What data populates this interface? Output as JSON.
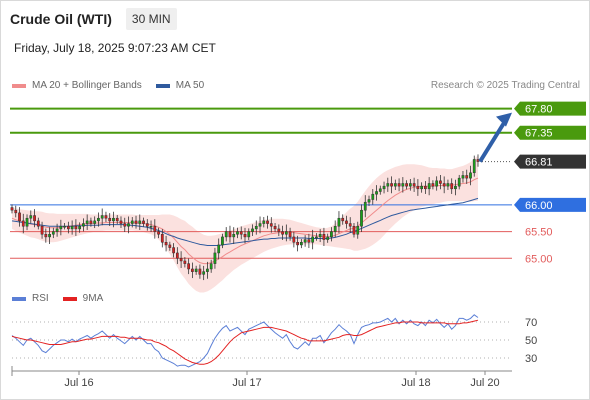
{
  "header": {
    "title": "Crude Oil (WTI)",
    "interval": "30 MIN"
  },
  "timestamp": "Friday, July 18, 2025 9:07:23 AM CET",
  "legend": {
    "ma20_label": "MA 20 + Bollinger Bands",
    "ma50_label": "MA 50",
    "ma20_color": "#f08c8c",
    "ma50_color": "#2f5a9e"
  },
  "source": "Research © 2025 Trading Central",
  "rsi_legend": {
    "rsi_label": "RSI",
    "rsi_color": "#5b7fd6",
    "ma_label": "9MA",
    "ma_color": "#e32222"
  },
  "colors": {
    "up": "#18a018",
    "down": "#d62020",
    "resistance": "#4a9a0e",
    "current": "#333333",
    "pivot": "#2f6fe0",
    "support": "#e25c5c",
    "arrow": "#2f5fa8",
    "band_fill": "#fbe1df"
  },
  "chart_data": [
    {
      "type": "candlestick",
      "instrument": "Crude Oil (WTI)",
      "timeframe": "30 MIN",
      "x_ticks": [
        "Jul 16",
        "Jul 17",
        "Jul 18",
        "Jul 20"
      ],
      "y_range": [
        64.5,
        68.0
      ],
      "levels": [
        {
          "label": "67.80",
          "value": 67.8,
          "kind": "resistance"
        },
        {
          "label": "67.35",
          "value": 67.35,
          "kind": "resistance"
        },
        {
          "label": "66.81",
          "value": 66.81,
          "kind": "current"
        },
        {
          "label": "66.00",
          "value": 66.0,
          "kind": "pivot"
        },
        {
          "label": "65.50",
          "value": 65.5,
          "kind": "support"
        },
        {
          "label": "65.00",
          "value": 65.0,
          "kind": "support"
        }
      ],
      "close": [
        65.9,
        65.85,
        65.7,
        65.6,
        65.75,
        65.8,
        65.7,
        65.6,
        65.45,
        65.4,
        65.45,
        65.5,
        65.55,
        65.6,
        65.6,
        65.55,
        65.6,
        65.55,
        65.6,
        65.65,
        65.7,
        65.65,
        65.7,
        65.75,
        65.8,
        65.75,
        65.7,
        65.75,
        65.7,
        65.65,
        65.6,
        65.65,
        65.7,
        65.65,
        65.7,
        65.65,
        65.6,
        65.6,
        65.5,
        65.45,
        65.3,
        65.25,
        65.2,
        65.1,
        65.0,
        64.95,
        64.9,
        64.8,
        64.75,
        64.8,
        64.7,
        64.75,
        64.8,
        64.9,
        65.1,
        65.25,
        65.4,
        65.5,
        65.4,
        65.45,
        65.5,
        65.45,
        65.4,
        65.5,
        65.55,
        65.6,
        65.65,
        65.7,
        65.65,
        65.6,
        65.55,
        65.5,
        65.45,
        65.5,
        65.4,
        65.3,
        65.25,
        65.3,
        65.35,
        65.3,
        65.4,
        65.4,
        65.45,
        65.35,
        65.4,
        65.5,
        65.6,
        65.75,
        65.7,
        65.65,
        65.6,
        65.45,
        65.6,
        65.9,
        66.05,
        66.1,
        66.2,
        66.25,
        66.3,
        66.35,
        66.4,
        66.35,
        66.4,
        66.35,
        66.4,
        66.35,
        66.4,
        66.35,
        66.3,
        66.35,
        66.3,
        66.4,
        66.35,
        66.45,
        66.4,
        66.35,
        66.4,
        66.3,
        66.35,
        66.5,
        66.55,
        66.5,
        66.6,
        66.85,
        66.81
      ],
      "ma20": [
        65.75,
        65.72,
        65.7,
        65.68,
        65.66,
        65.64,
        65.63,
        65.62,
        65.6,
        65.58,
        65.57,
        65.57,
        65.57,
        65.58,
        65.59,
        65.6,
        65.61,
        65.62,
        65.63,
        65.64,
        65.65,
        65.65,
        65.66,
        65.66,
        65.66,
        65.67,
        65.67,
        65.67,
        65.67,
        65.67,
        65.67,
        65.67,
        65.67,
        65.66,
        65.66,
        65.65,
        65.64,
        65.63,
        65.61,
        65.58,
        65.55,
        65.5,
        65.45,
        65.38,
        65.3,
        65.22,
        65.16,
        65.08,
        65.02,
        64.96,
        64.92,
        64.9,
        64.9,
        64.92,
        64.95,
        64.99,
        65.03,
        65.08,
        65.12,
        65.16,
        65.2,
        65.24,
        65.27,
        65.3,
        65.33,
        65.36,
        65.39,
        65.42,
        65.44,
        65.46,
        65.47,
        65.48,
        65.49,
        65.49,
        65.49,
        65.48,
        65.47,
        65.46,
        65.45,
        65.44,
        65.43,
        65.42,
        65.41,
        65.4,
        65.4,
        65.41,
        65.43,
        65.46,
        65.49,
        65.52,
        65.55,
        65.56,
        65.6,
        65.66,
        65.72,
        65.78,
        65.84,
        65.9,
        65.96,
        66.02,
        66.08,
        66.13,
        66.18,
        66.22,
        66.26,
        66.29,
        66.31,
        66.33,
        66.34,
        66.35,
        66.35,
        66.35,
        66.35,
        66.36,
        66.36,
        66.37,
        66.37,
        66.37,
        66.38,
        66.39,
        66.4,
        66.41,
        66.43,
        66.47,
        66.5
      ],
      "ma50": [
        65.7,
        65.69,
        65.68,
        65.67,
        65.66,
        65.65,
        65.64,
        65.63,
        65.62,
        65.61,
        65.6,
        65.6,
        65.6,
        65.6,
        65.6,
        65.6,
        65.6,
        65.61,
        65.61,
        65.61,
        65.62,
        65.62,
        65.62,
        65.62,
        65.63,
        65.63,
        65.63,
        65.63,
        65.63,
        65.63,
        65.63,
        65.62,
        65.62,
        65.61,
        65.6,
        65.59,
        65.58,
        65.56,
        65.54,
        65.52,
        65.49,
        65.46,
        65.43,
        65.41,
        65.38,
        65.36,
        65.34,
        65.32,
        65.3,
        65.28,
        65.26,
        65.25,
        65.24,
        65.24,
        65.24,
        65.24,
        65.25,
        65.26,
        65.27,
        65.28,
        65.29,
        65.3,
        65.31,
        65.32,
        65.33,
        65.34,
        65.35,
        65.36,
        65.36,
        65.37,
        65.37,
        65.38,
        65.38,
        65.38,
        65.38,
        65.38,
        65.38,
        65.38,
        65.38,
        65.37,
        65.37,
        65.37,
        65.37,
        65.37,
        65.37,
        65.38,
        65.39,
        65.41,
        65.43,
        65.45,
        65.48,
        65.5,
        65.53,
        65.56,
        65.59,
        65.62,
        65.65,
        65.68,
        65.71,
        65.74,
        65.77,
        65.8,
        65.82,
        65.84,
        65.86,
        65.88,
        65.9,
        65.91,
        65.92,
        65.93,
        65.94,
        65.95,
        65.96,
        65.97,
        65.98,
        65.99,
        66.0,
        66.01,
        66.02,
        66.03,
        66.04,
        66.06,
        66.08,
        66.1,
        66.12
      ],
      "bb_halfwidth": [
        0.2,
        0.21,
        0.22,
        0.23,
        0.24,
        0.25,
        0.25,
        0.26,
        0.27,
        0.27,
        0.27,
        0.27,
        0.26,
        0.25,
        0.24,
        0.23,
        0.22,
        0.21,
        0.2,
        0.19,
        0.18,
        0.17,
        0.16,
        0.16,
        0.15,
        0.15,
        0.15,
        0.15,
        0.15,
        0.15,
        0.15,
        0.15,
        0.15,
        0.15,
        0.15,
        0.16,
        0.17,
        0.18,
        0.2,
        0.23,
        0.27,
        0.32,
        0.37,
        0.42,
        0.47,
        0.51,
        0.54,
        0.56,
        0.57,
        0.57,
        0.56,
        0.54,
        0.52,
        0.5,
        0.48,
        0.46,
        0.44,
        0.42,
        0.4,
        0.38,
        0.37,
        0.36,
        0.35,
        0.34,
        0.33,
        0.32,
        0.31,
        0.3,
        0.29,
        0.28,
        0.27,
        0.26,
        0.25,
        0.24,
        0.23,
        0.22,
        0.21,
        0.2,
        0.19,
        0.18,
        0.17,
        0.16,
        0.16,
        0.16,
        0.17,
        0.19,
        0.22,
        0.26,
        0.3,
        0.34,
        0.38,
        0.42,
        0.46,
        0.5,
        0.54,
        0.57,
        0.59,
        0.6,
        0.6,
        0.59,
        0.57,
        0.55,
        0.53,
        0.51,
        0.49,
        0.47,
        0.45,
        0.43,
        0.41,
        0.39,
        0.37,
        0.35,
        0.34,
        0.33,
        0.32,
        0.31,
        0.3,
        0.3,
        0.31,
        0.32,
        0.33,
        0.35,
        0.37,
        0.4,
        0.42
      ]
    },
    {
      "type": "line",
      "name": "RSI panel",
      "y_ticks": [
        70,
        50,
        30
      ],
      "y_range": [
        20,
        80
      ],
      "series": [
        {
          "name": "RSI",
          "values": [
            55,
            52,
            48,
            44,
            50,
            52,
            48,
            44,
            38,
            36,
            40,
            44,
            47,
            50,
            50,
            48,
            51,
            48,
            51,
            53,
            55,
            52,
            55,
            57,
            60,
            56,
            52,
            56,
            52,
            49,
            46,
            50,
            54,
            50,
            54,
            50,
            46,
            46,
            40,
            37,
            30,
            28,
            26,
            24,
            21,
            22,
            22,
            20,
            22,
            24,
            26,
            30,
            35,
            44,
            52,
            58,
            63,
            66,
            60,
            62,
            64,
            60,
            56,
            62,
            64,
            66,
            68,
            70,
            66,
            62,
            58,
            55,
            52,
            56,
            48,
            42,
            40,
            44,
            48,
            44,
            52,
            52,
            55,
            47,
            52,
            58,
            62,
            67,
            63,
            60,
            56,
            46,
            56,
            64,
            66,
            67,
            69,
            69,
            70,
            72,
            74,
            70,
            74,
            68,
            72,
            68,
            72,
            68,
            66,
            70,
            66,
            72,
            69,
            73,
            68,
            64,
            68,
            62,
            66,
            74,
            74,
            72,
            74,
            78,
            75
          ]
        },
        {
          "name": "9MA",
          "values": [
            54,
            53,
            52,
            51,
            50,
            50,
            49,
            48,
            47,
            46,
            45,
            45,
            45,
            45,
            46,
            47,
            48,
            48,
            49,
            50,
            51,
            51,
            52,
            53,
            54,
            54,
            54,
            54,
            54,
            53,
            53,
            52,
            52,
            52,
            52,
            51,
            50,
            50,
            48,
            47,
            45,
            43,
            40,
            38,
            35,
            32,
            29,
            27,
            25,
            24,
            23,
            23,
            24,
            26,
            29,
            33,
            38,
            43,
            48,
            52,
            55,
            58,
            59,
            60,
            61,
            62,
            63,
            64,
            64,
            64,
            63,
            62,
            61,
            60,
            58,
            56,
            54,
            52,
            51,
            49,
            49,
            49,
            49,
            49,
            50,
            51,
            52,
            53,
            55,
            56,
            56,
            55,
            55,
            56,
            58,
            60,
            62,
            64,
            65,
            66,
            67,
            68,
            69,
            69,
            70,
            70,
            70,
            70,
            70,
            69,
            69,
            69,
            69,
            69,
            69,
            69,
            68,
            68,
            68,
            68,
            69,
            69,
            70,
            71,
            72
          ]
        }
      ]
    }
  ]
}
